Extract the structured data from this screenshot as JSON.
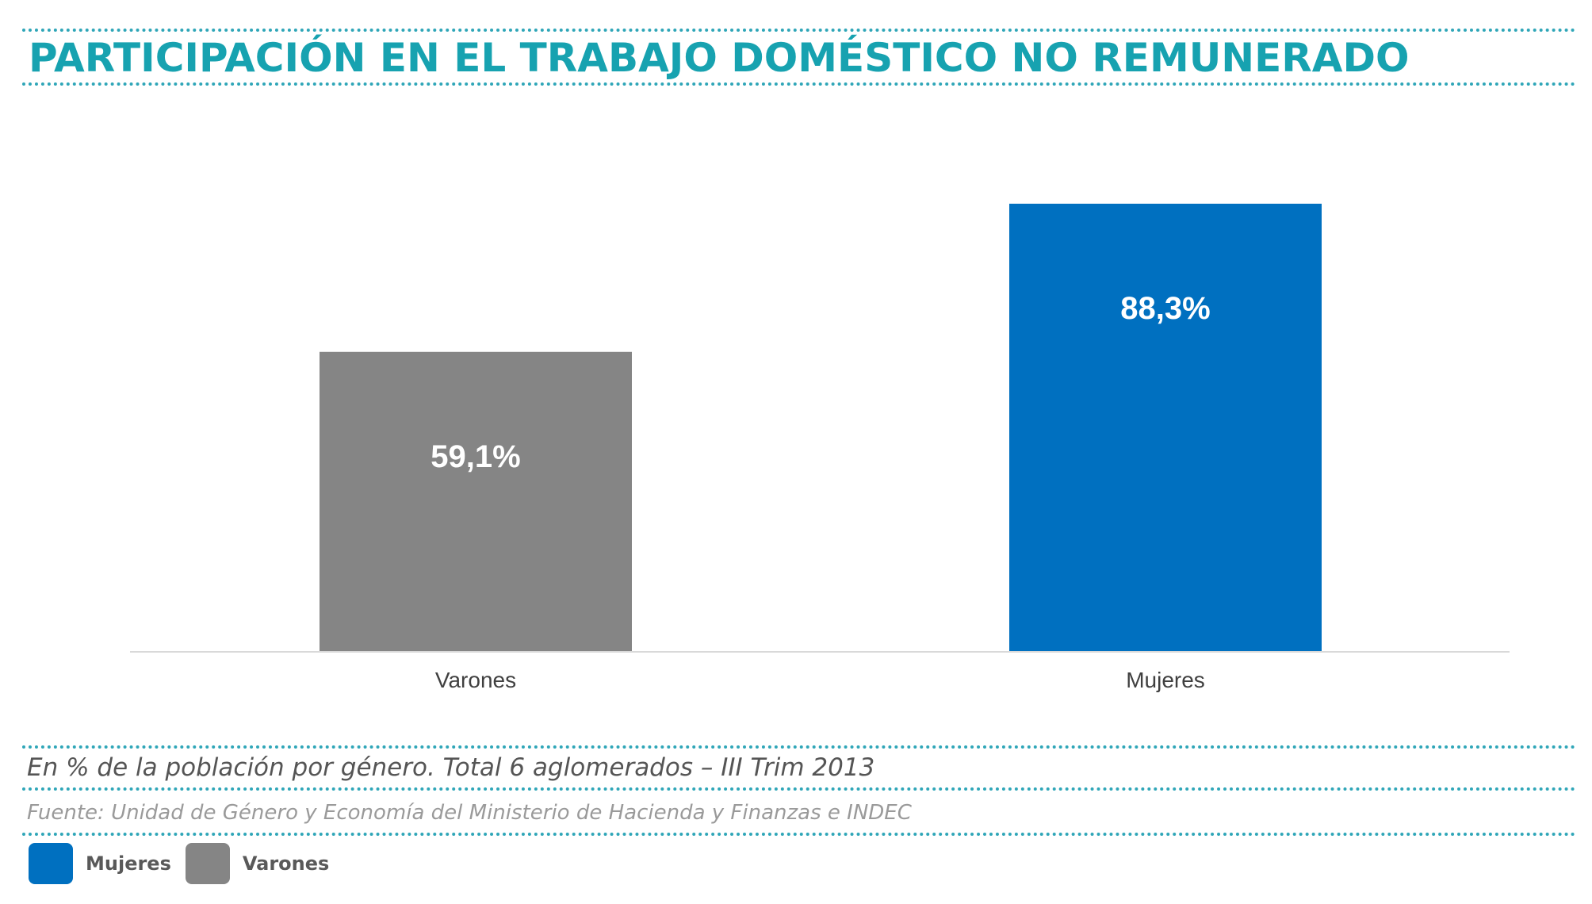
{
  "title": "PARTICIPACIÓN EN EL TRABAJO DOMÉSTICO NO REMUNERADO",
  "subtitle": "En % de la población por género. Total 6 aglomerados – III Trim 2013",
  "source": "Fuente: Unidad de Género y Economía del Ministerio de Hacienda y Finanzas e INDEC",
  "colors": {
    "title": "#17a2b0",
    "dots": "#2fa6b8",
    "varones": "#858585",
    "mujeres": "#0070c0",
    "axis": "#d9d9d9"
  },
  "legend": [
    {
      "label": "Mujeres",
      "color": "#0070c0"
    },
    {
      "label": "Varones",
      "color": "#858585"
    }
  ],
  "chart_data": {
    "type": "bar",
    "categories": [
      "Varones",
      "Mujeres"
    ],
    "values": [
      59.1,
      88.3
    ],
    "data_labels": [
      "59,1%",
      "88,3%"
    ],
    "colors": [
      "#858585",
      "#0070c0"
    ],
    "ylim": [
      0,
      100
    ],
    "grid": false
  }
}
